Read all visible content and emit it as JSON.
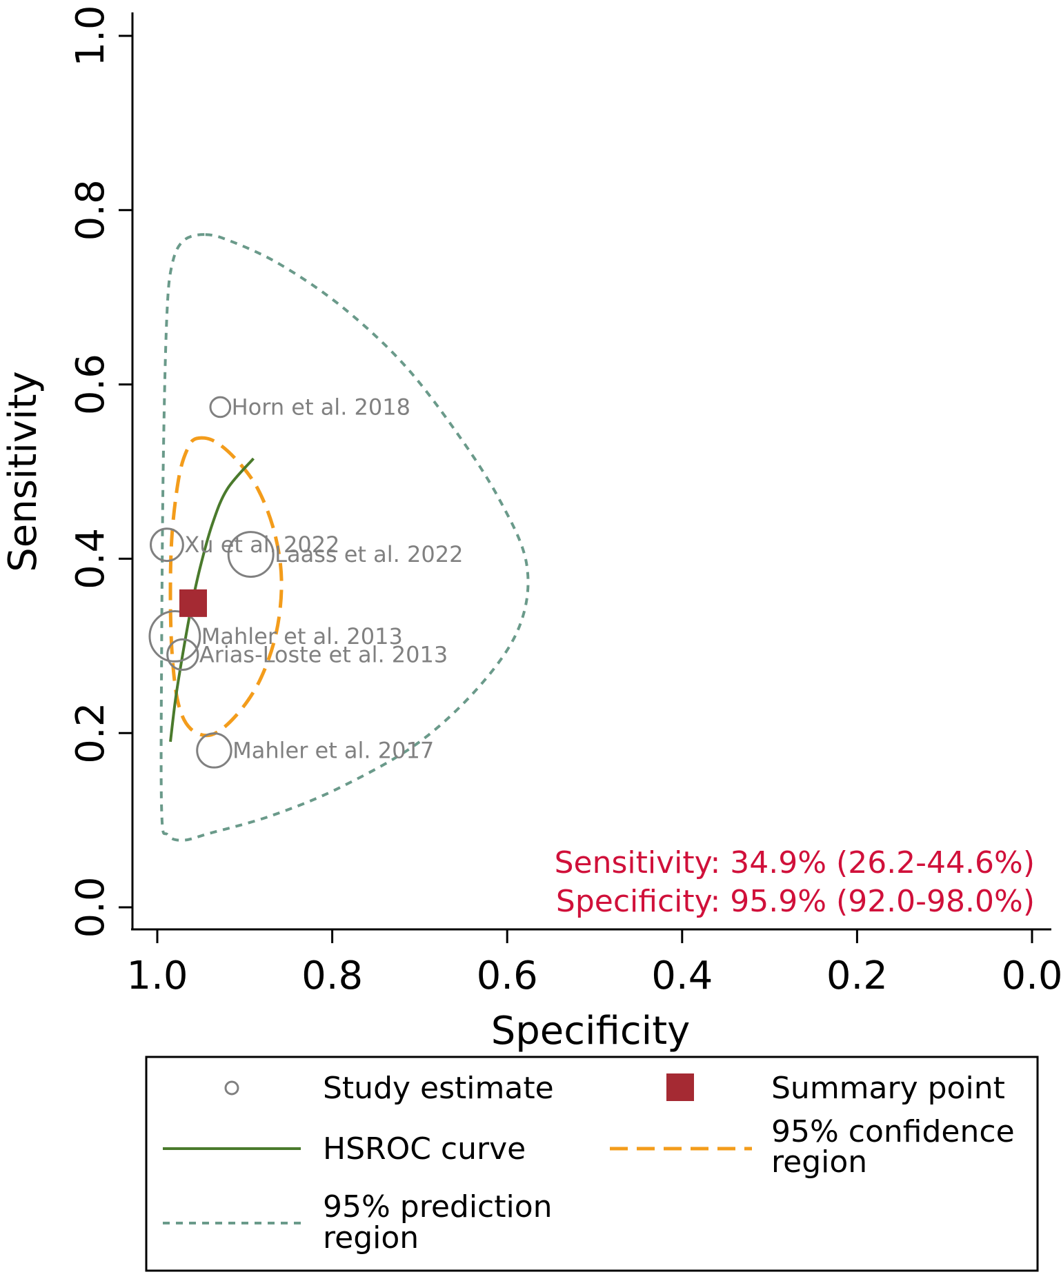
{
  "colors": {
    "study": "#808080",
    "summary": "#a52a33",
    "hsroc": "#4a7a2c",
    "confidence": "#f39c1b",
    "prediction": "#6a9a8a",
    "summary_text": "#d0103a"
  },
  "chart_data": {
    "type": "scatter",
    "xlabel": "Specificity",
    "ylabel": "Sensitivity",
    "xlim": [
      1.0,
      0.0
    ],
    "ylim": [
      0.0,
      1.0
    ],
    "x_ticks": [
      "1.0",
      "0.8",
      "0.6",
      "0.4",
      "0.2",
      "0.0"
    ],
    "y_ticks": [
      "0.0",
      "0.2",
      "0.4",
      "0.6",
      "0.8",
      "1.0"
    ],
    "studies": [
      {
        "name": "Horn et al. 2018",
        "specificity": 0.928,
        "sensitivity": 0.574,
        "weight": 0.55
      },
      {
        "name": "Xu et al. 2022",
        "specificity": 0.989,
        "sensitivity": 0.416,
        "weight": 0.9
      },
      {
        "name": "Laass et al. 2022",
        "specificity": 0.893,
        "sensitivity": 0.405,
        "weight": 1.25
      },
      {
        "name": "Mahler et al. 2013",
        "specificity": 0.98,
        "sensitivity": 0.311,
        "weight": 1.4
      },
      {
        "name": "Arias-Loste et al. 2013",
        "specificity": 0.971,
        "sensitivity": 0.29,
        "weight": 0.85
      },
      {
        "name": "Mahler et al. 2017",
        "specificity": 0.935,
        "sensitivity": 0.18,
        "weight": 0.95
      }
    ],
    "summary_point": {
      "specificity": 0.959,
      "sensitivity": 0.349
    },
    "hsroc_curve": [
      {
        "specificity": 0.985,
        "sensitivity": 0.19
      },
      {
        "specificity": 0.979,
        "sensitivity": 0.24
      },
      {
        "specificity": 0.971,
        "sensitivity": 0.29
      },
      {
        "specificity": 0.962,
        "sensitivity": 0.34
      },
      {
        "specificity": 0.951,
        "sensitivity": 0.39
      },
      {
        "specificity": 0.937,
        "sensitivity": 0.44
      },
      {
        "specificity": 0.92,
        "sensitivity": 0.48
      },
      {
        "specificity": 0.89,
        "sensitivity": 0.515
      }
    ],
    "confidence_region": [
      {
        "specificity": 0.955,
        "sensitivity": 0.538
      },
      {
        "specificity": 0.935,
        "sensitivity": 0.535
      },
      {
        "specificity": 0.91,
        "sensitivity": 0.514
      },
      {
        "specificity": 0.885,
        "sensitivity": 0.48
      },
      {
        "specificity": 0.866,
        "sensitivity": 0.43
      },
      {
        "specificity": 0.858,
        "sensitivity": 0.375
      },
      {
        "specificity": 0.864,
        "sensitivity": 0.315
      },
      {
        "specificity": 0.883,
        "sensitivity": 0.26
      },
      {
        "specificity": 0.91,
        "sensitivity": 0.22
      },
      {
        "specificity": 0.938,
        "sensitivity": 0.198
      },
      {
        "specificity": 0.962,
        "sensitivity": 0.205
      },
      {
        "specificity": 0.976,
        "sensitivity": 0.234
      },
      {
        "specificity": 0.983,
        "sensitivity": 0.29
      },
      {
        "specificity": 0.985,
        "sensitivity": 0.36
      },
      {
        "specificity": 0.983,
        "sensitivity": 0.43
      },
      {
        "specificity": 0.975,
        "sensitivity": 0.495
      },
      {
        "specificity": 0.965,
        "sensitivity": 0.527
      }
    ],
    "prediction_region": [
      {
        "specificity": 0.945,
        "sensitivity": 0.772
      },
      {
        "specificity": 0.915,
        "sensitivity": 0.764
      },
      {
        "specificity": 0.86,
        "sensitivity": 0.738
      },
      {
        "specificity": 0.79,
        "sensitivity": 0.69
      },
      {
        "specificity": 0.72,
        "sensitivity": 0.625
      },
      {
        "specificity": 0.66,
        "sensitivity": 0.548
      },
      {
        "specificity": 0.61,
        "sensitivity": 0.47
      },
      {
        "specificity": 0.578,
        "sensitivity": 0.395
      },
      {
        "specificity": 0.585,
        "sensitivity": 0.325
      },
      {
        "specificity": 0.628,
        "sensitivity": 0.258
      },
      {
        "specificity": 0.7,
        "sensitivity": 0.19
      },
      {
        "specificity": 0.79,
        "sensitivity": 0.138
      },
      {
        "specificity": 0.87,
        "sensitivity": 0.105
      },
      {
        "specificity": 0.94,
        "sensitivity": 0.085
      },
      {
        "specificity": 0.97,
        "sensitivity": 0.077
      },
      {
        "specificity": 0.988,
        "sensitivity": 0.083
      },
      {
        "specificity": 0.995,
        "sensitivity": 0.11
      },
      {
        "specificity": 0.995,
        "sensitivity": 0.3
      },
      {
        "specificity": 0.993,
        "sensitivity": 0.52
      },
      {
        "specificity": 0.989,
        "sensitivity": 0.68
      },
      {
        "specificity": 0.983,
        "sensitivity": 0.738
      },
      {
        "specificity": 0.97,
        "sensitivity": 0.765
      }
    ],
    "annotations": {
      "sensitivity": "Sensitivity: 34.9% (26.2-44.6%)",
      "specificity": "Specificity: 95.9% (92.0-98.0%)"
    },
    "legend": {
      "study_estimate": "Study estimate",
      "summary_point": "Summary point",
      "hsroc_curve": "HSROC curve",
      "confidence_line1": "95% confidence",
      "confidence_line2": "region",
      "prediction_line1": "95% prediction",
      "prediction_line2": "region"
    }
  }
}
